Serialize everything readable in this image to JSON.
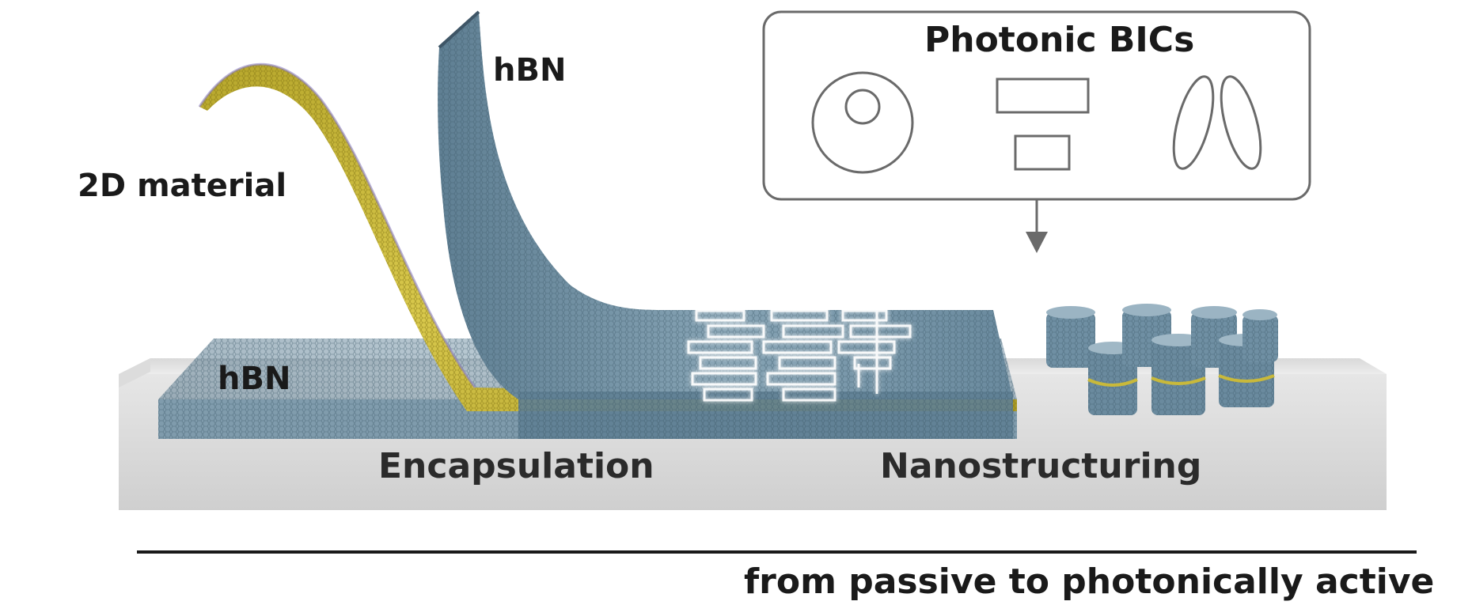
{
  "labels": {
    "material_2d": "2D material",
    "hbn_top": "hBN",
    "hbn_bottom": "hBN",
    "encapsulation": "Encapsulation",
    "nanostructuring": "Nanostructuring",
    "photonic_bics": "Photonic BICs",
    "passive_to_active": "from passive to photonically active"
  },
  "colors": {
    "hbn_blue": "#6f8fa3",
    "hbn_dark": "#4e6a7c",
    "material_yellow": "#c9b93a",
    "substrate": "#e4e4e4",
    "outline_gray": "#6a6a6a",
    "glow_white": "#ffffff"
  },
  "icons": [
    "ring-disk-icon",
    "rectangle-pair-icon",
    "ellipse-pair-icon",
    "down-arrow-icon"
  ]
}
